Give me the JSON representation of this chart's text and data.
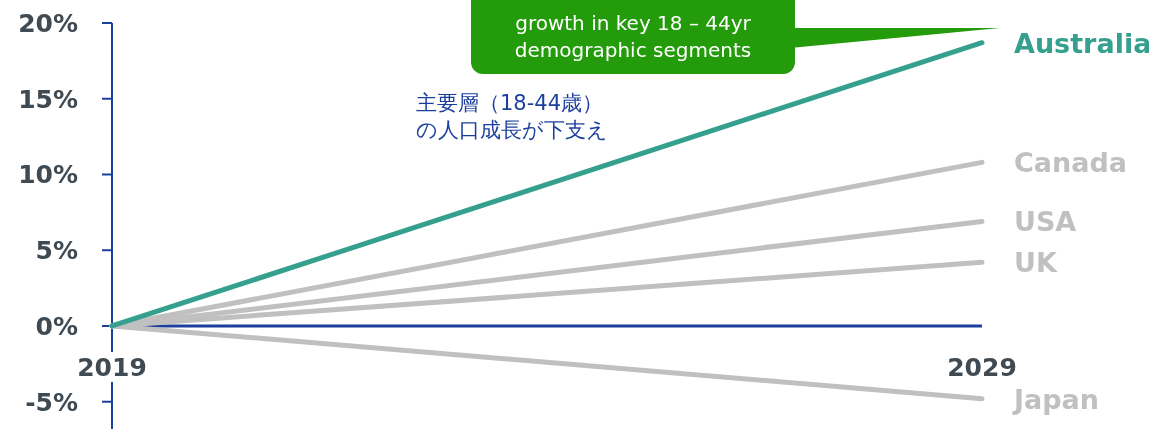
{
  "chart_data": {
    "type": "line",
    "x": [
      2019,
      2029
    ],
    "xlim": [
      2019,
      2029
    ],
    "xticks": [
      2019,
      2029
    ],
    "ylim": [
      -6.8,
      20
    ],
    "yticks": [
      {
        "value": -5,
        "label": "-5%"
      },
      {
        "value": 0,
        "label": "0%"
      },
      {
        "value": 5,
        "label": "5%"
      },
      {
        "value": 10,
        "label": "10%"
      },
      {
        "value": 15,
        "label": "15%"
      },
      {
        "value": 20,
        "label": "20%"
      }
    ],
    "series": [
      {
        "name": "Canada",
        "color": "#c0c0c0",
        "values": [
          0,
          10.8
        ]
      },
      {
        "name": "USA",
        "color": "#c0c0c0",
        "values": [
          0,
          6.9
        ]
      },
      {
        "name": "UK",
        "color": "#c0c0c0",
        "values": [
          0,
          4.2
        ]
      },
      {
        "name": "Japan",
        "color": "#c0c0c0",
        "values": [
          0,
          -4.8
        ]
      },
      {
        "name": "Australia",
        "color": "#35a08e",
        "values": [
          0,
          18.7
        ]
      }
    ],
    "annotations": [
      "growth in key 18 – 44yr\ndemographic segments",
      "主要層（18-44歳）",
      "の人口成長が下支え"
    ],
    "grid": false,
    "legend": false,
    "marker": "none",
    "line_style": "solid"
  }
}
